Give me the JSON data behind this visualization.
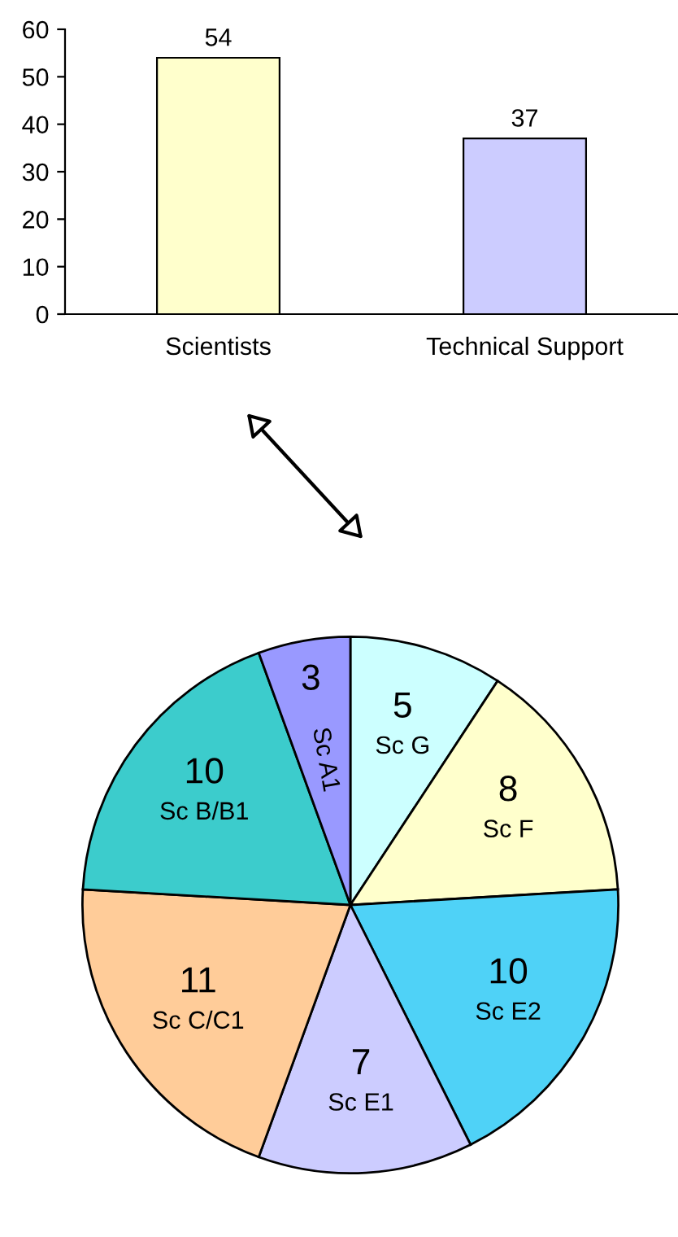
{
  "chart_data": [
    {
      "type": "bar",
      "categories": [
        "Scientists",
        "Technical Support"
      ],
      "values": [
        54,
        37
      ],
      "colors": [
        "#ffffcc",
        "#ccccff"
      ],
      "ylim": [
        0,
        60
      ],
      "yticks": [
        0,
        10,
        20,
        30,
        40,
        50,
        60
      ],
      "data_labels": true,
      "grid": false,
      "legend": false
    },
    {
      "type": "pie",
      "categories": [
        "Sc G",
        "Sc F",
        "Sc E2",
        "Sc E1",
        "Sc C/C1",
        "Sc B/B1",
        "Sc A1"
      ],
      "values": [
        5,
        8,
        10,
        7,
        11,
        10,
        3
      ],
      "colors": [
        "#ccffff",
        "#ffffcc",
        "#4fd2f7",
        "#ccccff",
        "#ffcc99",
        "#3ccccc",
        "#9999ff"
      ],
      "data_labels": true,
      "legend": false
    }
  ]
}
